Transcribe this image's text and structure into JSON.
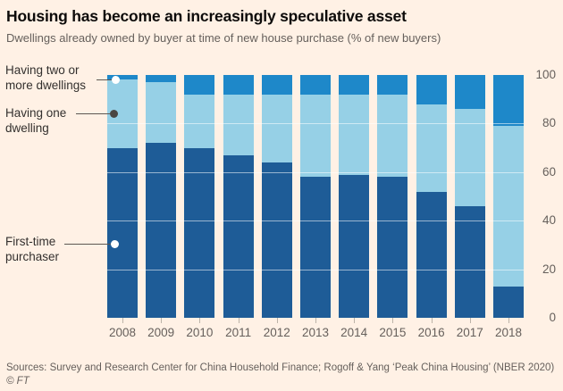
{
  "header": {
    "title": "Housing has become an increasingly speculative asset",
    "subtitle": "Dwellings already owned by buyer at time of new house purchase (% of new buyers)"
  },
  "chart_data": {
    "type": "bar",
    "subtype": "stacked-100",
    "categories": [
      "2008",
      "2009",
      "2010",
      "2011",
      "2012",
      "2013",
      "2014",
      "2015",
      "2016",
      "2017",
      "2018"
    ],
    "series": [
      {
        "key": "first-time",
        "name": "First-time purchaser",
        "color": "#1E5C97",
        "values": [
          70,
          72,
          70,
          67,
          64,
          58,
          59,
          58,
          52,
          46,
          13
        ]
      },
      {
        "key": "one-dwelling",
        "name": "Having one dwelling",
        "color": "#96D0E6",
        "values": [
          28,
          25,
          22,
          25,
          28,
          34,
          33,
          34,
          36,
          40,
          66
        ]
      },
      {
        "key": "two-or-more",
        "name": "Having two or more dwellings",
        "color": "#1E88C9",
        "values": [
          2,
          3,
          8,
          8,
          8,
          8,
          8,
          8,
          12,
          14,
          21
        ]
      }
    ],
    "title": "Housing has become an increasingly speculative asset",
    "xlabel": "",
    "ylabel": "% of new buyers",
    "ylim": [
      0,
      100
    ],
    "yticks": [
      0,
      20,
      40,
      60,
      80,
      100
    ],
    "grid_values": [
      20,
      40,
      60,
      80
    ],
    "legend_position": "left-annotations",
    "y_axis_side": "right"
  },
  "annotations": [
    {
      "lines": [
        "Having two or",
        "more dwellings"
      ],
      "dot": "white"
    },
    {
      "lines": [
        "Having one",
        "dwelling"
      ],
      "dot": "dark"
    },
    {
      "lines": [
        "First-time",
        "purchaser"
      ],
      "dot": "white"
    }
  ],
  "footer": {
    "sources": "Sources: Survey and Research Center for China Household Finance; Rogoff & Yang ‘Peak China Housing’ (NBER 2020)",
    "copyright": "© FT"
  },
  "colors": {
    "background": "#FFF1E5",
    "first_time": "#1E5C97",
    "one_dwelling": "#96D0E6",
    "two_or_more": "#1E88C9",
    "axis_text": "#66605C",
    "annotation_text": "#33302E"
  }
}
